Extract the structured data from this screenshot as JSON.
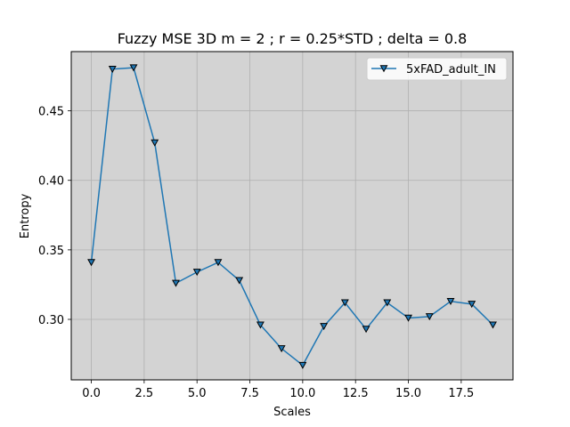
{
  "chart_data": {
    "type": "line",
    "title": "Fuzzy MSE 3D m = 2 ; r = 0.25*STD ; delta = 0.8",
    "xlabel": "Scales",
    "ylabel": "Entropy",
    "xlim": [
      -0.95,
      19.95
    ],
    "ylim": [
      0.2565,
      0.4926
    ],
    "xticks": [
      0.0,
      2.5,
      5.0,
      7.5,
      10.0,
      12.5,
      15.0,
      17.5
    ],
    "xtick_labels": [
      "0.0",
      "2.5",
      "5.0",
      "7.5",
      "10.0",
      "12.5",
      "15.0",
      "17.5"
    ],
    "yticks": [
      0.3,
      0.35,
      0.4,
      0.45
    ],
    "ytick_labels": [
      "0.30",
      "0.35",
      "0.40",
      "0.45"
    ],
    "grid": true,
    "legend_position": "top-right",
    "plot_background": "#d3d3d3",
    "series": [
      {
        "name": "5xFAD_adult_IN",
        "color": "#1f77b4",
        "marker": "triangle-down",
        "marker_face": "#1f77b4",
        "marker_edge": "#000000",
        "x": [
          0,
          1,
          2,
          3,
          4,
          5,
          6,
          7,
          8,
          9,
          10,
          11,
          12,
          13,
          14,
          15,
          16,
          17,
          18,
          19
        ],
        "values": [
          0.341,
          0.48,
          0.481,
          0.427,
          0.326,
          0.334,
          0.341,
          0.328,
          0.296,
          0.279,
          0.267,
          0.295,
          0.312,
          0.293,
          0.312,
          0.301,
          0.302,
          0.313,
          0.311,
          0.296
        ]
      }
    ]
  }
}
